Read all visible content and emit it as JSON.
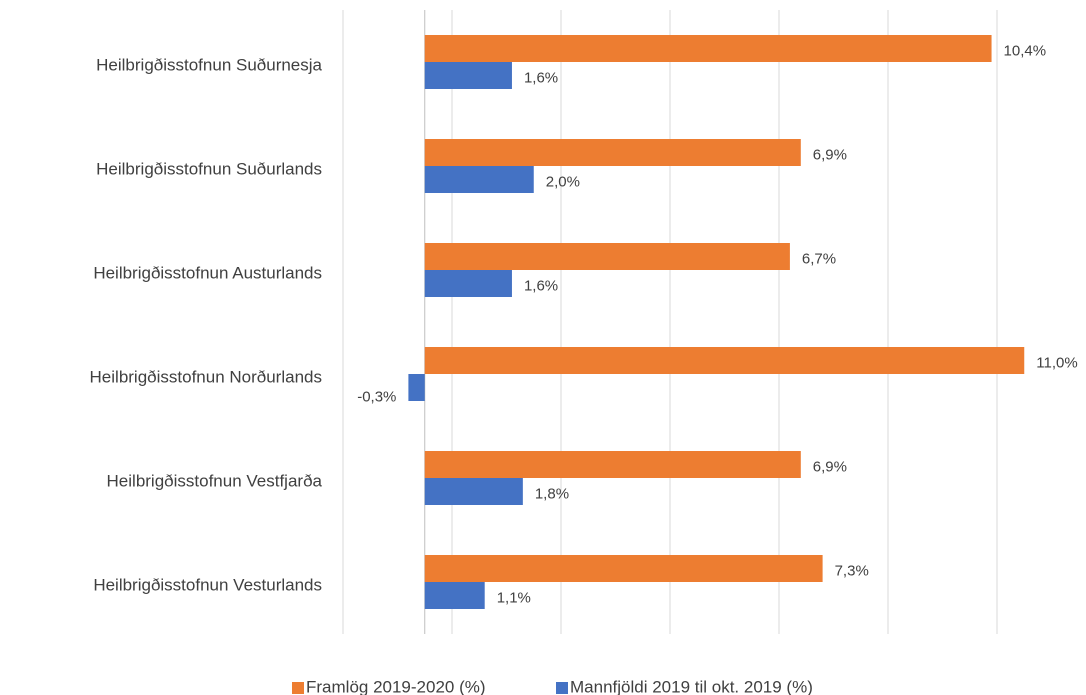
{
  "chart_data": {
    "type": "barh",
    "categories": [
      "Heilbrigðisstofnun Suðurnesja",
      "Heilbrigðisstofnun Suðurlands",
      "Heilbrigðisstofnun Austurlands",
      "Heilbrigðisstofnun Norðurlands",
      "Heilbrigðisstofnun Vestfjarða",
      "Heilbrigðisstofnun Vesturlands"
    ],
    "series": [
      {
        "name": "Framlög 2019-2020 (%)",
        "color": "#ed7d31",
        "values": [
          10.4,
          6.9,
          6.7,
          11.0,
          6.9,
          7.3
        ],
        "value_labels": [
          "10,4%",
          "6,9%",
          "6,7%",
          "11,0%",
          "6,9%",
          "7,3%"
        ]
      },
      {
        "name": "Mannfjöldi 2019 til okt. 2019 (%)",
        "color": "#4472c4",
        "values": [
          1.6,
          2.0,
          1.6,
          -0.3,
          1.8,
          1.1
        ],
        "value_labels": [
          "1,6%",
          "2,0%",
          "1,6%",
          "-0,3%",
          "1,8%",
          "1,1%"
        ]
      }
    ],
    "xlim": [
      -1.5,
      12.5
    ],
    "xticks": [
      -1.5,
      0.5,
      2.5,
      4.5,
      6.5,
      8.5,
      10.5
    ],
    "grid": true,
    "legend": "bottom"
  }
}
